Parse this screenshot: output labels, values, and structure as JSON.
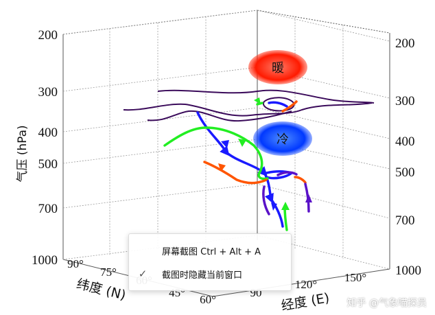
{
  "chart_data": {
    "type": "3d-trajectory",
    "zlabel": "气压 (hPa)",
    "ylabel": "纬度 (N)",
    "xlabel": "经度 (E)",
    "pressure_ticks_left": [
      "200",
      "300",
      "400",
      "500",
      "700",
      "1000"
    ],
    "pressure_ticks_right": [
      "200",
      "300",
      "400",
      "500",
      "700",
      "1000"
    ],
    "lat_ticks": [
      "90°",
      "75°",
      "60°",
      "45°"
    ],
    "lon_ticks": [
      "60°",
      "90",
      "120°",
      "150°"
    ],
    "annotations": {
      "warm": "暖",
      "cold": "冷"
    },
    "colors": {
      "warm": "#ff2a00",
      "cold": "#0044ff",
      "green": "#22ee22",
      "blue": "#1a1aff",
      "purple": "#5a12c8",
      "orange": "#ff5500",
      "contour": "#3a0a5a"
    }
  },
  "menu": {
    "items": [
      {
        "label": "屏幕截图 Ctrl + Alt + A"
      },
      {
        "label": "截图时隐藏当前窗口",
        "checked": "✓"
      }
    ]
  },
  "watermark": "知乎 @气象喵探员"
}
